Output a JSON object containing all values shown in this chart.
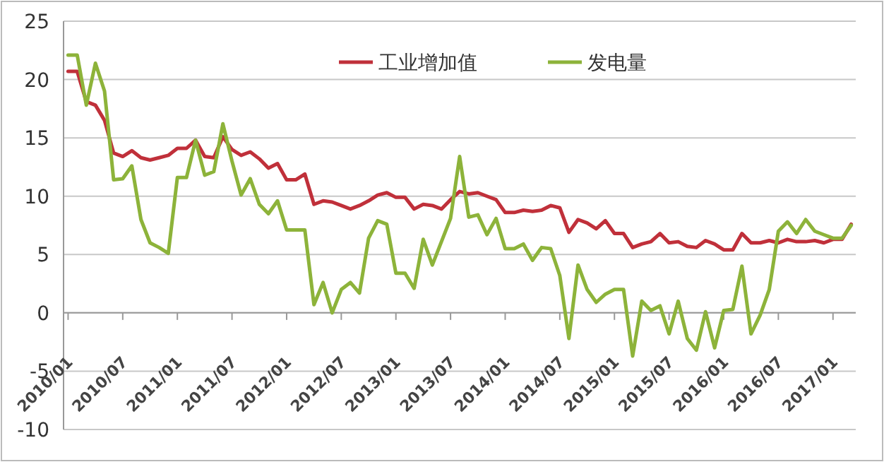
{
  "chart_data": {
    "type": "line",
    "categories": [
      "2010/01",
      null,
      null,
      null,
      null,
      null,
      "2010/07",
      null,
      null,
      null,
      null,
      null,
      "2011/01",
      null,
      null,
      null,
      null,
      null,
      "2011/07",
      null,
      null,
      null,
      null,
      null,
      "2012/01",
      null,
      null,
      null,
      null,
      null,
      "2012/07",
      null,
      null,
      null,
      null,
      null,
      "2013/01",
      null,
      null,
      null,
      null,
      null,
      "2013/07",
      null,
      null,
      null,
      null,
      null,
      "2014/01",
      null,
      null,
      null,
      null,
      null,
      "2014/07",
      null,
      null,
      null,
      null,
      null,
      "2015/01",
      null,
      null,
      null,
      null,
      null,
      "2015/07",
      null,
      null,
      null,
      null,
      null,
      "2016/01",
      null,
      null,
      null,
      null,
      null,
      "2016/07",
      null,
      null,
      null,
      null,
      null,
      "2017/01",
      null,
      null
    ],
    "series": [
      {
        "name": "工业增加值",
        "color": "#c0303a",
        "values": [
          20.7,
          20.7,
          18.1,
          17.8,
          16.5,
          13.7,
          13.4,
          13.9,
          13.3,
          13.1,
          13.3,
          13.5,
          14.1,
          14.1,
          14.8,
          13.4,
          13.3,
          15.1,
          14.0,
          13.5,
          13.8,
          13.2,
          12.4,
          12.8,
          11.4,
          11.4,
          11.9,
          9.3,
          9.6,
          9.5,
          9.2,
          8.9,
          9.2,
          9.6,
          10.1,
          10.3,
          9.9,
          9.9,
          8.9,
          9.3,
          9.2,
          8.9,
          9.7,
          10.4,
          10.2,
          10.3,
          10.0,
          9.7,
          8.6,
          8.6,
          8.8,
          8.7,
          8.8,
          9.2,
          9.0,
          6.9,
          8.0,
          7.7,
          7.2,
          7.9,
          6.8,
          6.8,
          5.6,
          5.9,
          6.1,
          6.8,
          6.0,
          6.1,
          5.7,
          5.6,
          6.2,
          5.9,
          5.4,
          5.4,
          6.8,
          6.0,
          6.0,
          6.2,
          6.0,
          6.3,
          6.1,
          6.1,
          6.2,
          6.0,
          6.3,
          6.3,
          7.6
        ]
      },
      {
        "name": "发电量",
        "color": "#8db33a",
        "values": [
          22.1,
          22.1,
          17.8,
          21.4,
          19.0,
          11.4,
          11.5,
          12.6,
          8.0,
          6.0,
          5.6,
          5.1,
          11.6,
          11.6,
          14.8,
          11.8,
          12.1,
          16.2,
          13.0,
          10.1,
          11.5,
          9.3,
          8.5,
          9.6,
          7.1,
          7.1,
          7.1,
          0.7,
          2.6,
          0.0,
          2.0,
          2.6,
          1.7,
          6.4,
          7.9,
          7.6,
          3.4,
          3.4,
          2.1,
          6.3,
          4.1,
          6.1,
          8.1,
          13.4,
          8.2,
          8.4,
          6.7,
          8.1,
          5.5,
          5.5,
          5.9,
          4.5,
          5.6,
          5.5,
          3.2,
          -2.2,
          4.1,
          2.0,
          0.9,
          1.6,
          2.0,
          2.0,
          -3.7,
          1.0,
          0.2,
          0.6,
          -1.8,
          1.0,
          -2.2,
          -3.2,
          0.1,
          -3.0,
          0.2,
          0.3,
          4.0,
          -1.8,
          -0.2,
          2.0,
          7.0,
          7.8,
          6.8,
          8.0,
          7.0,
          6.7,
          6.4,
          6.4,
          7.5
        ]
      }
    ],
    "ylim": [
      -10,
      25
    ],
    "yticks": [
      -10,
      -5,
      0,
      5,
      10,
      15,
      20,
      25
    ],
    "grid": "y",
    "legend": "top"
  }
}
